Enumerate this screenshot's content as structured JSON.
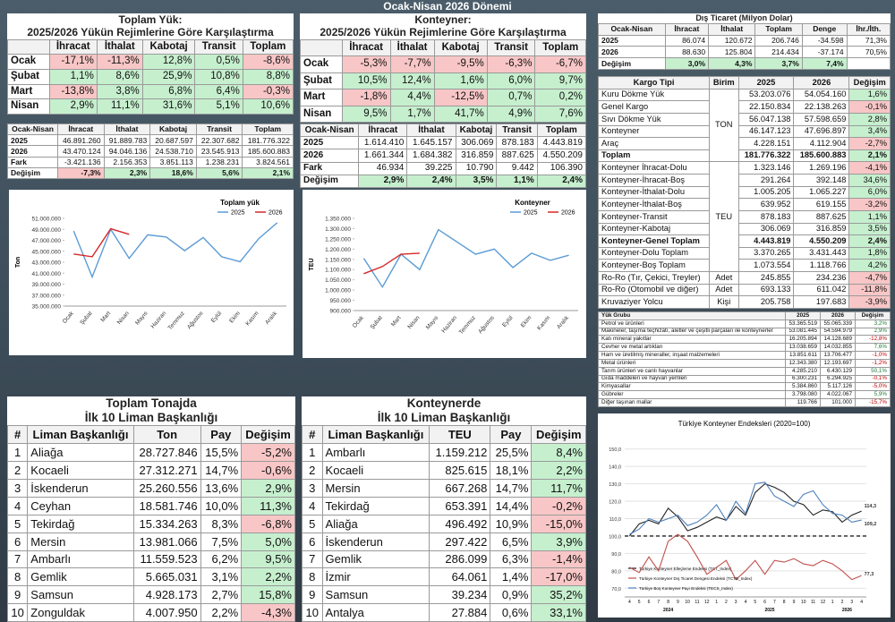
{
  "title": "Ocak-Nisan 2026 Dönemi",
  "positive_color": "#c6efce",
  "negative_color": "#f8c6c6",
  "positive_text": "#1e7b34",
  "negative_text": "#c00000",
  "panel_a": {
    "title": "Toplam Yük:",
    "subtitle": "2025/2026 Yükün Rejimlerine Göre Karşılaştırma",
    "header": [
      "İhracat",
      "İthalat",
      "Kabotaj",
      "Transit",
      "Toplam"
    ],
    "rows": [
      [
        "Ocak",
        "-17,1%",
        "-11,3%",
        "12,8%",
        "0,5%",
        "-8,6%"
      ],
      [
        "Şubat",
        "1,1%",
        "8,6%",
        "25,9%",
        "10,8%",
        "8,8%"
      ],
      [
        "Mart",
        "-13,8%",
        "3,8%",
        "6,8%",
        "6,4%",
        "-0,3%"
      ],
      [
        "Nisan",
        "2,9%",
        "11,1%",
        "31,6%",
        "5,1%",
        "10,6%"
      ]
    ]
  },
  "panel_a2": {
    "header": [
      "Ocak-Nisan",
      "İhracat",
      "İthalat",
      "Kabotaj",
      "Transit",
      "Toplam"
    ],
    "rows": [
      [
        "2025",
        "46.891.260",
        "91.889.783",
        "20.687.597",
        "22.307.682",
        "181.776.322"
      ],
      [
        "2026",
        "43.470.124",
        "94.046.136",
        "24.538.710",
        "23.545.913",
        "185.600.883"
      ],
      [
        "Fark",
        "-3.421.136",
        "2.156.353",
        "3.851.113",
        "1.238.231",
        "3.824.561"
      ],
      [
        "Değişim",
        "-7,3%",
        "2,3%",
        "18,6%",
        "5,6%",
        "2,1%"
      ]
    ]
  },
  "panel_b": {
    "title": "Konteyner:",
    "subtitle": "2025/2026 Yükün Rejimlerine Göre Karşılaştırma",
    "header": [
      "İhracat",
      "İthalat",
      "Kabotaj",
      "Transit",
      "Toplam"
    ],
    "rows": [
      [
        "Ocak",
        "-5,3%",
        "-7,7%",
        "-9,5%",
        "-6,3%",
        "-6,7%"
      ],
      [
        "Şubat",
        "10,5%",
        "12,4%",
        "1,6%",
        "6,0%",
        "9,7%"
      ],
      [
        "Mart",
        "-1,8%",
        "4,4%",
        "-12,5%",
        "0,7%",
        "0,2%"
      ],
      [
        "Nisan",
        "9,5%",
        "1,7%",
        "41,7%",
        "4,9%",
        "7,6%"
      ]
    ]
  },
  "panel_b2": {
    "header": [
      "Ocak-Nisan",
      "İhracat",
      "İthalat",
      "Kabotaj",
      "Transit",
      "Toplam"
    ],
    "rows": [
      [
        "2025",
        "1.614.410",
        "1.645.157",
        "306.069",
        "878.183",
        "4.443.819"
      ],
      [
        "2026",
        "1.661.344",
        "1.684.382",
        "316.859",
        "887.625",
        "4.550.209"
      ],
      [
        "Fark",
        "46.934",
        "39.225",
        "10.790",
        "9.442",
        "106.390"
      ],
      [
        "Değişim",
        "2,9%",
        "2,4%",
        "3,5%",
        "1,1%",
        "2,4%"
      ]
    ]
  },
  "panel_c": {
    "title": "Dış Ticaret (Milyon Dolar)",
    "header": [
      "Ocak-Nisan",
      "İhracat",
      "İthalat",
      "Toplam",
      "Denge",
      "İhr./İth."
    ],
    "rows": [
      [
        "2025",
        "86.074",
        "120.672",
        "206.746",
        "-34.598",
        "71,3%"
      ],
      [
        "2026",
        "88.630",
        "125.804",
        "214.434",
        "-37.174",
        "70,5%"
      ],
      [
        "Değişim",
        "3,0%",
        "4,3%",
        "3,7%",
        "7,4%"
      ]
    ]
  },
  "panel_d": {
    "header": [
      "Kargo Tipi",
      "Birim",
      "2025",
      "2026",
      "Değişim"
    ],
    "groups": [
      {
        "unit": "TON",
        "bold": [
          5
        ],
        "rows": [
          [
            "Kuru Dökme Yük",
            "53.203.076",
            "54.054.160",
            "1,6%"
          ],
          [
            "Genel Kargo",
            "22.150.834",
            "22.138.263",
            "-0,1%"
          ],
          [
            "Sıvı Dökme Yük",
            "56.047.138",
            "57.598.659",
            "2,8%"
          ],
          [
            "Konteyner",
            "46.147.123",
            "47.696.897",
            "3,4%"
          ],
          [
            "Araç",
            "4.228.151",
            "4.112.904",
            "-2,7%"
          ],
          [
            "Toplam",
            "181.776.322",
            "185.600.883",
            "2,1%"
          ]
        ]
      },
      {
        "unit": "TEU",
        "bold": [
          6
        ],
        "rows": [
          [
            "Konteyner İhracat-Dolu",
            "1.323.146",
            "1.269.196",
            "-4,1%"
          ],
          [
            "Konteyner-İhracat-Boş",
            "291.264",
            "392.148",
            "34,6%"
          ],
          [
            "Konteyner-İthalat-Dolu",
            "1.005.205",
            "1.065.227",
            "6,0%"
          ],
          [
            "Konteyner-İthalat-Boş",
            "639.952",
            "619.155",
            "-3,2%"
          ],
          [
            "Konteyner-Transit",
            "878.183",
            "887.625",
            "1,1%"
          ],
          [
            "Konteyner-Kabotaj",
            "306.069",
            "316.859",
            "3,5%"
          ],
          [
            "Konteyner-Genel Toplam",
            "4.443.819",
            "4.550.209",
            "2,4%"
          ],
          [
            "Konteyner-Dolu Toplam",
            "3.370.265",
            "3.431.443",
            "1,8%"
          ],
          [
            "Konteyner-Boş Toplam",
            "1.073.554",
            "1.118.766",
            "4,2%"
          ]
        ]
      },
      {
        "unit": "Adet",
        "rows": [
          [
            "Ro-Ro (Tır, Çekici, Treyler)",
            "245.855",
            "234.236",
            "-4,7%"
          ]
        ]
      },
      {
        "unit": "Adet",
        "rows": [
          [
            "Ro-Ro (Otomobil ve diğer)",
            "693.133",
            "611.042",
            "-11,8%"
          ]
        ]
      },
      {
        "unit": "Kişi",
        "rows": [
          [
            "Kruvaziyer Yolcu",
            "205.758",
            "197.683",
            "-3,9%"
          ]
        ]
      }
    ]
  },
  "panel_e": {
    "header": [
      "Yük Grubu",
      "2025",
      "2026",
      "Değişim"
    ],
    "rows": [
      [
        "Petrol ve ürünleri",
        "53.365.519",
        "55.065.339",
        "3,2%"
      ],
      [
        "Makineler, taşıma teçhizatı, aletler ve çeşitli parçaları ile konteynerler",
        "53.081.445",
        "54.594.979",
        "2,9%"
      ],
      [
        "Katı mineral yakıtlar",
        "16.205.894",
        "14.128.689",
        "-12,8%"
      ],
      [
        "Cevher ve metal artıkları",
        "13.038.659",
        "14.032.855",
        "7,6%"
      ],
      [
        "Ham ve üretilmiş mineraller, inşaat malzemeleri",
        "13.851.611",
        "13.706.477",
        "-1,0%"
      ],
      [
        "Metal ürünleri",
        "12.343.380",
        "12.193.697",
        "-1,2%"
      ],
      [
        "Tarım ürünleri ve canlı hayvanlar",
        "4.285.210",
        "6.430.129",
        "50,1%"
      ],
      [
        "Gıda maddeleri ve hayvan yemleri",
        "6.300.231",
        "6.294.925",
        "-0,1%"
      ],
      [
        "Kimyasallar",
        "5.384.860",
        "5.117.126",
        "-5,0%"
      ],
      [
        "Gübreler",
        "3.798.080",
        "4.022.067",
        "5,9%"
      ],
      [
        "Diğer taşınan mallar",
        "119.766",
        "101.000",
        "-15,7%"
      ]
    ]
  },
  "panel_f": {
    "title": "Toplam Tonajda",
    "subtitle": "İlk 10 Liman Başkanlığı",
    "header": [
      "#",
      "Liman Başkanlığı",
      "Ton",
      "Pay",
      "Değişim"
    ],
    "rows": [
      [
        "1",
        "Aliağa",
        "28.727.846",
        "15,5%",
        "-5,2%"
      ],
      [
        "2",
        "Kocaeli",
        "27.312.271",
        "14,7%",
        "-0,6%"
      ],
      [
        "3",
        "İskenderun",
        "25.260.556",
        "13,6%",
        "2,9%"
      ],
      [
        "4",
        "Ceyhan",
        "18.581.746",
        "10,0%",
        "11,3%"
      ],
      [
        "5",
        "Tekirdağ",
        "15.334.263",
        "8,3%",
        "-6,8%"
      ],
      [
        "6",
        "Mersin",
        "13.981.066",
        "7,5%",
        "5,0%"
      ],
      [
        "7",
        "Ambarlı",
        "11.559.523",
        "6,2%",
        "9,5%"
      ],
      [
        "8",
        "Gemlik",
        "5.665.031",
        "3,1%",
        "2,2%"
      ],
      [
        "9",
        "Samsun",
        "4.928.173",
        "2,7%",
        "15,8%"
      ],
      [
        "10",
        "Zonguldak",
        "4.007.950",
        "2,2%",
        "-4,3%"
      ]
    ]
  },
  "panel_g": {
    "title": "Konteynerde",
    "subtitle": "İlk 10 Liman Başkanlığı",
    "header": [
      "#",
      "Liman Başkanlığı",
      "TEU",
      "Pay",
      "Değişim"
    ],
    "rows": [
      [
        "1",
        "Ambarlı",
        "1.159.212",
        "25,5%",
        "8,4%"
      ],
      [
        "2",
        "Kocaeli",
        "825.615",
        "18,1%",
        "2,2%"
      ],
      [
        "3",
        "Mersin",
        "667.268",
        "14,7%",
        "11,7%"
      ],
      [
        "4",
        "Tekirdağ",
        "653.391",
        "14,4%",
        "-0,2%"
      ],
      [
        "5",
        "Aliağa",
        "496.492",
        "10,9%",
        "-15,0%"
      ],
      [
        "6",
        "İskenderun",
        "297.422",
        "6,5%",
        "3,9%"
      ],
      [
        "7",
        "Gemlik",
        "286.099",
        "6,3%",
        "-1,4%"
      ],
      [
        "8",
        "İzmir",
        "64.061",
        "1,4%",
        "-17,0%"
      ],
      [
        "9",
        "Samsun",
        "39.234",
        "0,9%",
        "35,2%"
      ],
      [
        "10",
        "Antalya",
        "27.884",
        "0,6%",
        "33,1%"
      ]
    ]
  },
  "chart_data": [
    {
      "type": "line",
      "title": "Toplam yük",
      "y_label": "Ton",
      "legend": "top-right",
      "grid": false,
      "categories": [
        "Ocak",
        "Şubat",
        "Mart",
        "Nisan",
        "Mayıs",
        "Haziran",
        "Temmuz",
        "Ağustos",
        "Eylül",
        "Ekim",
        "Kasım",
        "Aralık"
      ],
      "ylim": [
        35000000,
        51000000
      ],
      "yticks": [
        {
          "value": 35000000,
          "label": "35.000.000"
        },
        {
          "value": 37000000,
          "label": "37.000.000"
        },
        {
          "value": 39000000,
          "label": "39.000.000"
        },
        {
          "value": 41000000,
          "label": "41.000.000"
        },
        {
          "value": 43000000,
          "label": "43.000.000"
        },
        {
          "value": 45000000,
          "label": "45.000.000"
        },
        {
          "value": 47000000,
          "label": "47.000.000"
        },
        {
          "value": 49000000,
          "label": "49.000.000"
        },
        {
          "value": 51000000,
          "label": "51.000.000"
        }
      ],
      "series": [
        {
          "name": "2025",
          "color": "#5b9bd5",
          "values": [
            48700000,
            40300000,
            49000000,
            43700000,
            48000000,
            47600000,
            45100000,
            47500000,
            44000000,
            43100000,
            47300000,
            50200000
          ]
        },
        {
          "name": "2026",
          "color": "#d62728",
          "values": [
            44500000,
            44000000,
            49100000,
            48100000,
            null,
            null,
            null,
            null,
            null,
            null,
            null,
            null
          ]
        }
      ]
    },
    {
      "type": "line",
      "title": "Konteyner",
      "y_label": "TEU",
      "legend": "top-right",
      "grid": false,
      "categories": [
        "Ocak",
        "Şubat",
        "Mart",
        "Nisan",
        "Mayıs",
        "Haziran",
        "Temmuz",
        "Ağustos",
        "Eylül",
        "Ekim",
        "Kasım",
        "Aralık"
      ],
      "ylim": [
        900000,
        1350000
      ],
      "yticks": [
        {
          "value": 900000,
          "label": "900.000"
        },
        {
          "value": 950000,
          "label": "950.000"
        },
        {
          "value": 1000000,
          "label": "1.000.000"
        },
        {
          "value": 1050000,
          "label": "1.050.000"
        },
        {
          "value": 1100000,
          "label": "1.100.000"
        },
        {
          "value": 1150000,
          "label": "1.150.000"
        },
        {
          "value": 1200000,
          "label": "1.200.000"
        },
        {
          "value": 1250000,
          "label": "1.250.000"
        },
        {
          "value": 1300000,
          "label": "1.300.000"
        },
        {
          "value": 1350000,
          "label": "1.350.000"
        }
      ],
      "series": [
        {
          "name": "2025",
          "color": "#5b9bd5",
          "values": [
            1155000,
            1015000,
            1175000,
            1100000,
            1295000,
            1235000,
            1175000,
            1200000,
            1110000,
            1180000,
            1145000,
            1170000
          ]
        },
        {
          "name": "2026",
          "color": "#d62728",
          "values": [
            1080000,
            1115000,
            1175000,
            1180000,
            null,
            null,
            null,
            null,
            null,
            null,
            null,
            null
          ]
        }
      ]
    },
    {
      "type": "line",
      "title": "Türkiye Konteyner Endeksleri (2020=100)",
      "legend": "bottom-left",
      "grid": true,
      "reference_line": 100,
      "categories": [
        "4",
        "5",
        "6",
        "7",
        "8",
        "9",
        "10",
        "11",
        "12",
        "1",
        "2",
        "3",
        "4",
        "5",
        "6",
        "7",
        "8",
        "9",
        "10",
        "11",
        "12",
        "1",
        "2",
        "3",
        "4"
      ],
      "x_groups": [
        {
          "label": "2024",
          "from": 0,
          "to": 8
        },
        {
          "label": "2025",
          "from": 9,
          "to": 20
        },
        {
          "label": "2026",
          "from": 21,
          "to": 24
        }
      ],
      "ylim": [
        65,
        155
      ],
      "yticks": [
        {
          "value": 70,
          "label": "70,0"
        },
        {
          "value": 80,
          "label": "80,0"
        },
        {
          "value": 90,
          "label": "90,0"
        },
        {
          "value": 100,
          "label": "100,0"
        },
        {
          "value": 110,
          "label": "110,0"
        },
        {
          "value": 120,
          "label": "120,0"
        },
        {
          "value": 130,
          "label": "130,0"
        },
        {
          "value": 140,
          "label": "140,0"
        },
        {
          "value": 150,
          "label": "150,0"
        }
      ],
      "series": [
        {
          "name": "Türkiye Konteyner Elleçleme Endeksi (TCT_Index)",
          "color": "#222222",
          "values": [
            100,
            107,
            109,
            107,
            116,
            111,
            103,
            105,
            108,
            111,
            109,
            117,
            112,
            125,
            130,
            128,
            125,
            120,
            118,
            112,
            115,
            114,
            108,
            112,
            114.3
          ],
          "value_labels": [
            null,
            null,
            null,
            null,
            null,
            null,
            null,
            null,
            null,
            null,
            null,
            null,
            null,
            null,
            null,
            null,
            null,
            null,
            null,
            null,
            null,
            null,
            null,
            null,
            "114,3"
          ]
        },
        {
          "name": "Türkiye Konteyner Dış Ticaret Dengesi Endeksi (TCTB_Index)",
          "color": "#c0504d",
          "values": [
            82,
            79,
            88,
            80,
            97,
            101,
            97,
            88,
            78,
            82,
            86,
            75,
            80,
            86,
            78,
            86,
            85,
            87,
            84,
            83,
            86,
            84,
            80,
            75,
            77.3
          ],
          "value_labels": [
            null,
            null,
            null,
            null,
            null,
            null,
            null,
            null,
            null,
            null,
            null,
            null,
            null,
            null,
            null,
            null,
            null,
            null,
            null,
            null,
            null,
            null,
            null,
            null,
            "77,3"
          ]
        },
        {
          "name": "Türkiye Boş Konteyner Payı Endeksi (TECS_Index)",
          "color": "#4f81bd",
          "values": [
            101,
            104,
            110,
            108,
            110,
            112,
            106,
            108,
            112,
            118,
            109,
            120,
            113,
            130,
            131,
            123,
            120,
            117,
            124,
            126,
            118,
            113,
            112,
            108,
            109.2
          ],
          "value_labels": [
            null,
            null,
            null,
            null,
            null,
            null,
            null,
            null,
            null,
            null,
            null,
            null,
            null,
            null,
            null,
            null,
            null,
            null,
            null,
            null,
            null,
            null,
            null,
            null,
            "109,2"
          ]
        }
      ]
    }
  ]
}
